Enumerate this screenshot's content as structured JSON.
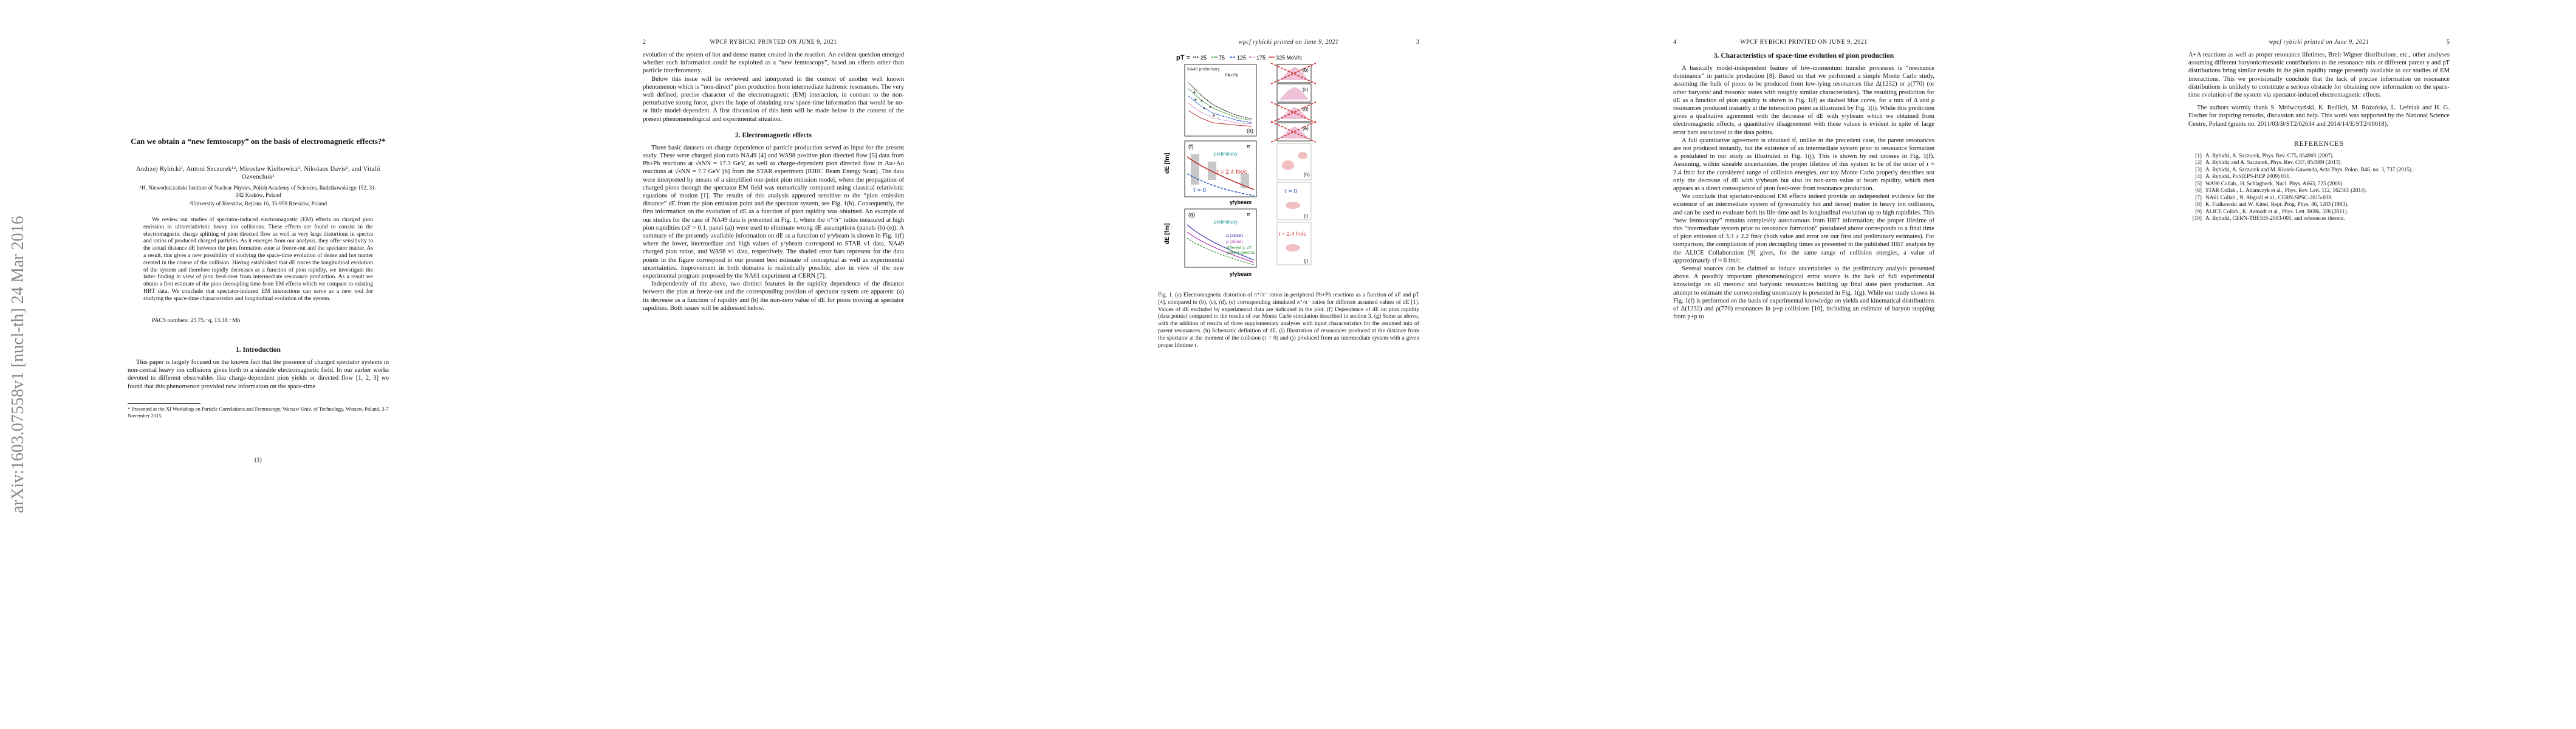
{
  "arxiv_stamp": "arXiv:1603.07558v1  [nucl-th]  24 Mar 2016",
  "page1": {
    "title": "Can we obtain a “new femtoscopy” on the basis of electromagnetic effects?*",
    "authors": "Andrzej Rybicki¹, Antoni Szczurek¹², Mirosław Kiełbowicz¹, Nikolaos Davis¹, and Vitalii Ozvenchuk¹",
    "affil1": "¹H. Niewodniczański Institute of Nuclear Physics, Polish Academy of Sciences, Radzikowskiego 152, 31-342 Kraków, Poland",
    "affil2": "²University of Rzeszów, Rejtana 16, 35-959 Rzeszów, Poland",
    "abstract": "We review our studies of spectator-induced electromagnetic (EM) effects on charged pion emission in ultrarelativistic heavy ion collisions. These effects are found to consist in the electromagnetic charge splitting of pion directed flow as well as very large distortions in spectra and ratios of produced charged particles. As it emerges from our analysis, they offer sensitivity to the actual distance dE between the pion formation zone at freeze-out and the spectator matter. As a result, this gives a new possibility of studying the space-time evolution of dense and hot matter created in the course of the collision. Having established that dE traces the longitudinal evolution of the system and therefore rapidly decreases as a function of pion rapidity, we investigate the latter finding in view of pion feed-over from intermediate resonance production. As a result we obtain a first estimate of the pion decoupling time from EM effects which we compare to existing HBT data. We conclude that spectator-induced EM interactions can serve as a new tool for studying the space-time characteristics and longitudinal evolution of the system.",
    "pacs": "PACS numbers: 25.75.−q, 13.38.−Mh",
    "intro_heading": "1. Introduction",
    "intro_text": "This paper is largely focused on the known fact that the presence of charged spectator systems in non-central heavy ion collisions gives birth to a sizeable electromagnetic field. In our earlier works devoted to different observables like charge-dependent pion yields or directed flow [1, 2, 3] we found that this phenomenon provided new information on the space-time",
    "footnote": "* Presented at the XI Workshop on Particle Correlations and Femtoscopy, Warsaw Univ. of Technology, Warsaw, Poland, 3-7 November 2015.",
    "page_number": "(1)"
  },
  "page2": {
    "rh_left": "2",
    "rh_center": "WPCF RYBICKI    PRINTED ON JUNE 9, 2021",
    "para1": "evolution of the system of hot and dense matter created in the reaction. An evident question emerged whether such information could be exploited as a “new femtoscopy”, based on effects other than particle interferometry.",
    "para2": "Below this issue will be reviewed and interpreted in the context of another well known phenomenon which is “non-direct” pion production from intermediate hadronic resonances. The very well defined, precise character of the electromagnetic (EM) interaction, in contrast to the non-perturbative strong force, gives the hope of obtaining new space-time information that would be no- or little model-dependent. A first discussion of this item will be made below in the context of the present phenomenological and experimental situation.",
    "sec2_heading": "2. Electromagnetic effects",
    "para3": "Three basic datasets on charge dependence of particle production served as input for the present study. These were charged pion ratio NA49 [4] and WA98 positive pion directed flow [5] data from Pb+Pb reactions at √sNN = 17.3 GeV, as well as charge-dependent pion directed flow in Au+Au reactions at √sNN = 7.7 GeV [6] from the STAR experiment (RHIC Beam Energy Scan). The data were interpreted by means of a simplified one-point pion emission model, where the propagation of charged pions through the spectator EM field was numerically computed using classical relativistic equations of motion [1]. The results of this analysis appeared sensitive to the “pion emission distance” dE from the pion emission point and the spectator system, see Fig. 1(b). Consequently, the first information on the evolution of dE as a function of pion rapidity was obtained. An example of our studies for the case of NA49 data is presented in Fig. 1, where the π⁺/π⁻ ratios measured at high pion rapidities (xF > 0.1, panel (a)) were used to eliminate wrong dE assumptions (panels (b)-(e)). A summary of the presently available information on dE as a function of y/ybeam is shown in Fig. 1(f) where the lower, intermediate and high values of y/ybeam correspond to STAR v1 data, NA49 charged pion ratios, and WA98 v1 data, respectively. The shaded error bars represent for the data points in the figure correspond to our present best estimate of conceptual as well as experimental uncertainties. Improvement in both domains is realistically possible, also in view of the new experimental program proposed by the NA61 experiment at CERN [7].",
    "para4": "Independently of the above, two distinct features in the rapidity dependence of the distance between the pion at freeze-out and the corresponding position of spectator system are apparent: (a) its decrease as a function of rapidity and (b) the non-zero value of dE for pions moving at spectator rapidities. Both issues will be addressed below."
  },
  "page3": {
    "rh_center": "wpcf rybicki    printed on June 9, 2021",
    "rh_right": "3",
    "fig": {
      "pT_label": "pT =",
      "pT_values": [
        "25",
        "75",
        "125",
        "175",
        "325 MeV/c"
      ],
      "na49_label": "NA49 preliminary",
      "pbpb_label": "Pb+Pb",
      "panel_a": "(a)",
      "panel_b": "(b)",
      "panel_c": "(c)",
      "panel_d": "(d)",
      "panel_e": "(e)",
      "panel_f": "(f)",
      "panel_g": "(g)",
      "panel_h": "(h)",
      "panel_i": "(i)",
      "panel_j": "(j)",
      "pi": "π",
      "preliminary": "preliminary",
      "tau24": "τ = 2.4 fm/c",
      "tau0": "τ = 0",
      "dE_axis": "dE [fm]",
      "yybeam": "y/ybeam",
      "delta_alone": "Δ (alone)",
      "rho_alone": "ρ (alone)",
      "diff_spectra": "different y, pT",
      "parent_spectra": "parent spectra",
      "tau0_i": "τ = 0",
      "tau24_j": "τ = 2.4 fm/c"
    },
    "caption": "Fig. 1. (a) Electromagnetic distortion of π⁺/π⁻ ratios in peripheral Pb+Pb reactions as a function of xF and pT [4], compared to (b), (c), (d), (e) corresponding simulated π⁺/π⁻ ratios for different assumed values of dE [1]. Values of dE excluded by experimental data are indicated in the plot. (f) Dependence of dE on pion rapidity (data points) compared to the results of our Monte Carlo simulation described in section 3. (g) Same as above, with the addition of results of three supplementary analyses with input characteristics for the assumed mix of parent resonances. (h) Schematic definition of dE. (i) Illustration of resonances produced at the distance from the spectator at the moment of the collision (τ = 0) and (j) produced from an intermediate system with a given proper lifetime τ."
  },
  "page4": {
    "rh_left": "4",
    "rh_center": "WPCF RYBICKI    PRINTED ON JUNE 9, 2021",
    "sec3_heading": "3. Characteristics of space-time evolution of pion production",
    "para1": "A basically model-independent feature of low-momentum transfer processes is “resonance dominance” in particle production [8]. Based on that we performed a simple Monte Carlo study, assuming the bulk of pions to be produced from low-lying resonances like Δ(1232) or ρ(770) (or other baryonic and mesonic states with roughly similar characteristics). The resulting prediction for dE as a function of pion rapidity is shown in Fig. 1(f) as dashed blue curve, for a mix of Δ and ρ resonances produced instantly at the interaction point as illustrated by Fig. 1(i). While this prediction gives a qualitative agreement with the decrease of dE with y/ybeam which we obtained from electromagnetic effects, a quantitative disagreement with these values is evident in spite of large error bars associated to the data points.",
    "para2": "A full quantitative agreement is obtained if, unlike in the precedent case, the parent resonances are not produced instantly, but the existence of an intermediate system prior to resonance formation is postulated in our study as illustrated in Fig. 1(j). This is shown by red crosses in Fig. 1(f). Assuming, within sizeable uncertainties, the proper lifetime of this system to be of the order of τ ≈ 2.4 fm/c for the considered range of collision energies, our toy Monte Carlo properly describes not only the decrease of dE with y/ybeam but also its non-zero value at beam rapidity, which then appears as a direct consequence of pion feed-over from resonance production.",
    "para3": "We conclude that spectator-induced EM effects indeed provide an independent evidence for the existence of an intermediate system of (presumably hot and dense) matter in heavy ion collisions, and can be used to evaluate both its life-time and its longitudinal evolution up to high rapidities. This “new femtoscopy” remains completely autonomous from HBT information; the proper lifetime of this “intermediate system prior to resonance formation” postulated above corresponds to a final time of pion emission of 3.3 ± 2.2 fm/c (both value and error are our first and preliminary estimates). For comparison, the compilation of pion decoupling times as presented in the published HBT analysis by the ALICE Collaboration [9] gives, for the same range of collision energies, a value of approximately τf ≈ 6 fm/c.",
    "para4": "Several sources can be claimed to induce uncertainties to the preliminary analysis presented above. A possibly important phenomenological error source is the lack of full experimental knowledge on all mesonic and baryonic resonances building up final state pion production. An attempt to estimate the corresponding uncertainty is presented in Fig. 1(g). While our study shown in Fig. 1(f) is performed on the basis of experimental knowledge on yields and kinematical distributions of Δ(1232) and ρ(770) resonances in p+p collisions [10], including an estimate of baryon stopping from p+p to"
  },
  "page5": {
    "rh_center": "wpcf rybicki    printed on June 9, 2021",
    "rh_right": "5",
    "para1": "A+A reactions as well as proper resonance lifetimes, Breit-Wigner distributions, etc., other analyses assuming different baryonic/mesonic contributions to the resonance mix or different parent y and pT distributions bring similar results in the pion rapidity range presently available to our studies of EM interactions. This we provisionally conclude that the lack of precise information on resonance distributions is unlikely to constitute a serious obstacle for obtaining new information on the space-time evolution of the system via spectator-induced electromagnetic effects.",
    "para2": "The authors warmly thank S. Mrówczyński, K. Redlich, M. Różańska, L. Leśniak and H. G. Fischer for inspiring remarks, discussion and help. This work was supported by the National Science Centre, Poland (grants no. 2011/03/B/ST2/02634 and 2014/14/E/ST2/00018).",
    "refs_heading": "REFERENCES",
    "refs": [
      {
        "n": "[1]",
        "t": "A. Rybicki, A. Szczurek, Phys. Rev. C75, 054903 (2007)."
      },
      {
        "n": "[2]",
        "t": "A. Rybicki and A. Szczurek, Phys. Rev. C87, 054909 (2013)."
      },
      {
        "n": "[3]",
        "t": "A. Rybicki, A. Szczurek and M. Kłusek-Gawenda, Acta Phys. Polon. B46, no. 3, 737 (2015)."
      },
      {
        "n": "[4]",
        "t": "A. Rybicki, PoS(EPS-HEP 2009) 031."
      },
      {
        "n": "[5]",
        "t": "WA98 Collab., H. Schlagheck, Nucl. Phys. A663, 725 (2000)."
      },
      {
        "n": "[6]",
        "t": "STAR Collab., L. Adamczyk et al., Phys. Rev. Lett. 112, 162301 (2014)."
      },
      {
        "n": "[7]",
        "t": "NA61 Collab., N. Abgrall et al., CERN-SPSC-2015-038."
      },
      {
        "n": "[8]",
        "t": "K. Fiałkowski and W. Kittel, Rept. Prog. Phys. 46, 1283 (1983)."
      },
      {
        "n": "[9]",
        "t": "ALICE Collab., K. Aamodt et al., Phys. Lett. B696, 328 (2011)."
      },
      {
        "n": "[10]",
        "t": "A. Rybicki, CERN-THESIS-2003-005, and references therein."
      }
    ]
  }
}
